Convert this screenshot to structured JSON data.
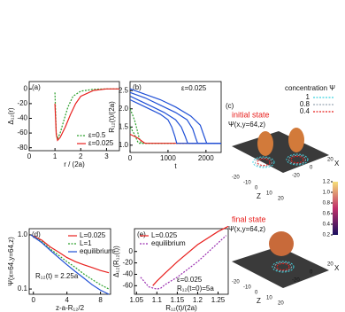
{
  "chart_data": [
    {
      "type": "line",
      "panel_label": "(a)",
      "xlabel": "r / (2a)",
      "ylabel": "Δ₁₂(r)",
      "xlim": [
        0,
        3.5
      ],
      "ylim": [
        -84,
        10
      ],
      "xticks": [
        0,
        1,
        2,
        3
      ],
      "yticks": [
        0,
        -20,
        -40,
        -60,
        -80
      ],
      "legend": "lower right",
      "series": [
        {
          "name": "ε=0.5",
          "color": "#2ca02c",
          "dash": true,
          "x": [
            1.0,
            1.05,
            1.1,
            1.2,
            1.3,
            1.5,
            1.7,
            2.0,
            2.5,
            3.0,
            3.5
          ],
          "values": [
            -5,
            -60,
            -68,
            -60,
            -48,
            -25,
            -10,
            -3,
            -0.5,
            0,
            0
          ]
        },
        {
          "name": "ε=0.025",
          "color": "#e8201e",
          "dash": false,
          "x": [
            1.0,
            1.05,
            1.1,
            1.2,
            1.4,
            1.6,
            1.8,
            2.0,
            2.5,
            3.0,
            3.5
          ],
          "values": [
            -20,
            -62,
            -70,
            -66,
            -52,
            -35,
            -20,
            -10,
            -2,
            0,
            0
          ]
        }
      ]
    },
    {
      "type": "line",
      "panel_label": "(b)",
      "xlabel": "t",
      "ylabel": "R₁₂(t)/(2a)",
      "xlim": [
        0,
        2400
      ],
      "ylim": [
        0.8,
        2.75
      ],
      "xticks": [
        0,
        1000,
        2000
      ],
      "yticks": [
        {
          "value": 1,
          "label": "1.0"
        },
        1.5,
        {
          "value": 2,
          "label": "2.0"
        },
        2.5
      ],
      "annotations": [
        "ε=0.025"
      ],
      "series": [
        {
          "color": "#2ca02c",
          "dash": true,
          "x": [
            0,
            50,
            100,
            150,
            200,
            230,
            260,
            2400
          ],
          "values": [
            1.5,
            1.42,
            1.33,
            1.22,
            1.1,
            1.05,
            1.05,
            1.05
          ]
        },
        {
          "color": "#2ca02c",
          "dash": true,
          "x": [
            0,
            60,
            120,
            180,
            240,
            290,
            320,
            2400
          ],
          "values": [
            2.0,
            1.85,
            1.68,
            1.45,
            1.2,
            1.06,
            1.05,
            1.05
          ]
        },
        {
          "color": "#e8201e",
          "dash": false,
          "x": [
            0,
            100,
            200,
            300,
            380,
            420,
            2400
          ],
          "values": [
            1.3,
            1.25,
            1.2,
            1.12,
            1.06,
            1.05,
            1.05
          ]
        },
        {
          "color": "#1f4fd6",
          "dash": false,
          "x": [
            0,
            200,
            400,
            600,
            800,
            1000,
            1100,
            1180,
            1230,
            2400
          ],
          "values": [
            2.25,
            2.15,
            2.05,
            1.95,
            1.85,
            1.7,
            1.5,
            1.25,
            1.05,
            1.05
          ]
        },
        {
          "color": "#1f4fd6",
          "dash": false,
          "x": [
            0,
            300,
            600,
            900,
            1200,
            1350,
            1450,
            1520,
            2400
          ],
          "values": [
            2.35,
            2.2,
            2.05,
            1.9,
            1.7,
            1.5,
            1.25,
            1.05,
            1.05
          ]
        },
        {
          "color": "#1f4fd6",
          "dash": false,
          "x": [
            0,
            400,
            800,
            1200,
            1500,
            1650,
            1730,
            1780,
            2400
          ],
          "values": [
            2.45,
            2.3,
            2.1,
            1.9,
            1.7,
            1.45,
            1.2,
            1.05,
            1.05
          ]
        },
        {
          "color": "#1f4fd6",
          "dash": false,
          "x": [
            0,
            400,
            800,
            1200,
            1600,
            1850,
            1950,
            2020,
            2400
          ],
          "values": [
            2.55,
            2.4,
            2.25,
            2.05,
            1.8,
            1.55,
            1.25,
            1.05,
            1.05
          ]
        }
      ]
    },
    {
      "type": "surface",
      "panel_label": "(c)",
      "title": "concentration Ψ",
      "legend_entries": [
        {
          "name": "1",
          "color": "#3fd3e0"
        },
        {
          "name": "0.8",
          "color": "#9aa7b4"
        },
        {
          "name": "0.4",
          "color": "#e8201e"
        }
      ],
      "states": [
        {
          "label": "initial state",
          "zlabel": "Ψ(x,y=64,z)"
        },
        {
          "label": "final state",
          "zlabel": "Ψ(x,y=64,z)"
        }
      ],
      "colorbar_ticks": [
        0.2,
        0.4,
        0.6,
        0.8,
        {
          "value": 1,
          "label": "1.0"
        },
        1.2
      ],
      "xticks": [
        -20,
        0,
        20
      ],
      "zticks": [
        -20,
        -10,
        0,
        10,
        20
      ],
      "xlabel": "X",
      "zlabel": "Z"
    },
    {
      "type": "line",
      "panel_label": "(d)",
      "xlabel": "z-a-R₁₂/2",
      "ylabel": "Ψ(x=64,y=64,z)",
      "log_y": true,
      "xlim": [
        -0.5,
        9.2
      ],
      "ylim": [
        0.08,
        1.3
      ],
      "xticks": [
        0,
        4,
        8
      ],
      "yticks": [
        0.1,
        {
          "value": 1,
          "label": "1.0"
        }
      ],
      "legend": "upper right",
      "annotations": [
        "R₁₂(t) = 2.25a"
      ],
      "series": [
        {
          "name": "L=0.025",
          "color": "#e8201e",
          "dash": false,
          "x": [
            -0.3,
            1,
            2,
            3,
            4,
            5,
            6,
            7,
            8,
            9
          ],
          "values": [
            1.0,
            0.8,
            0.6,
            0.48,
            0.38,
            0.32,
            0.28,
            0.25,
            0.22,
            0.2
          ]
        },
        {
          "name": "L=1",
          "color": "#2ca02c",
          "dash": true,
          "x": [
            -0.3,
            1,
            2,
            3,
            4,
            5,
            6,
            7,
            8,
            9
          ],
          "values": [
            1.0,
            0.75,
            0.55,
            0.42,
            0.32,
            0.25,
            0.19,
            0.15,
            0.12,
            0.1
          ]
        },
        {
          "name": "equilibrium",
          "color": "#1f4fd6",
          "dash": false,
          "x": [
            -0.3,
            1,
            2,
            3,
            4,
            5,
            6,
            7,
            8,
            9
          ],
          "values": [
            1.0,
            0.72,
            0.52,
            0.38,
            0.28,
            0.21,
            0.16,
            0.12,
            0.095,
            0.08
          ]
        }
      ]
    },
    {
      "type": "line",
      "panel_label": "(e)",
      "xlabel": "R₁₂(t)/(2a)",
      "ylabel": "Δ₁₂(R₁₂(t))",
      "xlim": [
        1.045,
        1.275
      ],
      "ylim": [
        -75,
        40
      ],
      "xticks": [
        1.05,
        1.1,
        1.15,
        1.2,
        1.25
      ],
      "yticks": [
        0,
        -20,
        -40,
        -60
      ],
      "legend": "upper left",
      "annotations": [
        "ε=0.025",
        "R₁₂(t=0)=5a"
      ],
      "series": [
        {
          "name": "L=0.025",
          "color": "#e8201e",
          "dash": false,
          "x": [
            1.09,
            1.1,
            1.12,
            1.15,
            1.2,
            1.25,
            1.275
          ],
          "values": [
            -60,
            -52,
            -38,
            -18,
            12,
            35,
            44
          ]
        },
        {
          "name": "equilibrium",
          "color": "#9b2fb0",
          "dash": true,
          "x": [
            1.06,
            1.08,
            1.1,
            1.11,
            1.12,
            1.15,
            1.2,
            1.25,
            1.27
          ],
          "values": [
            -45,
            -62,
            -66,
            -64,
            -58,
            -45,
            -18,
            15,
            28
          ]
        }
      ]
    }
  ]
}
